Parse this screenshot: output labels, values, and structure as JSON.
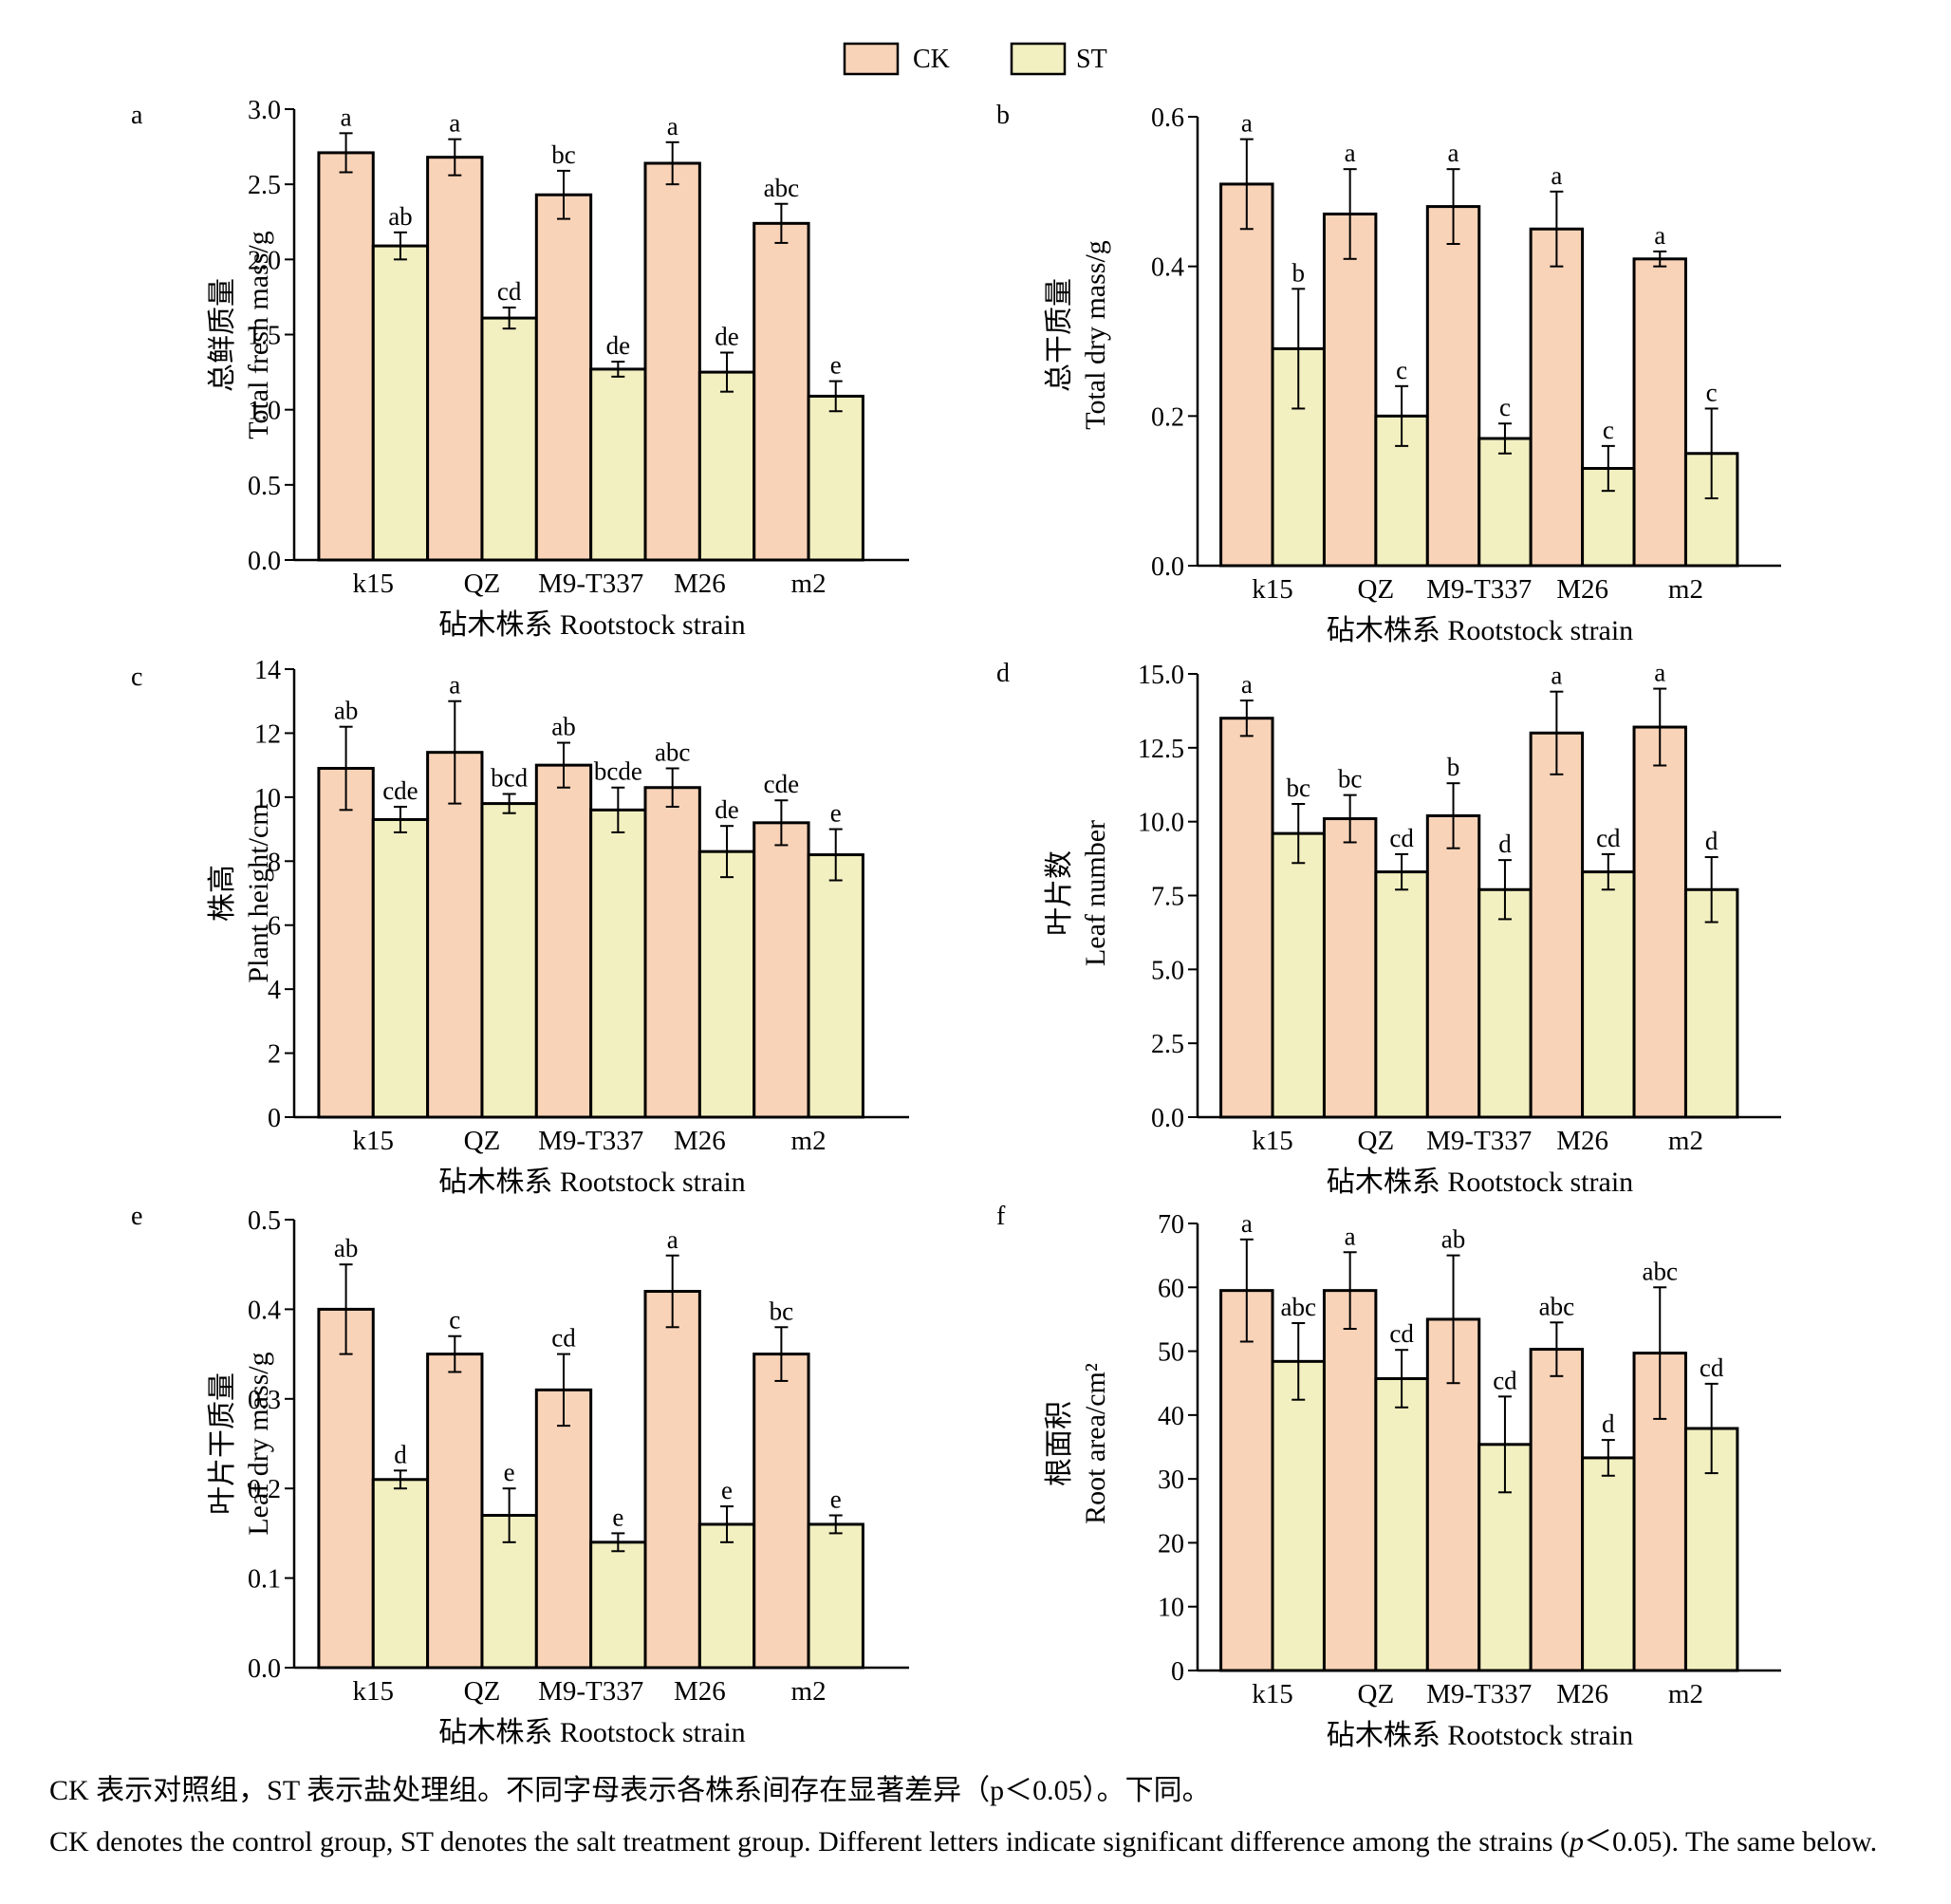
{
  "legend": {
    "items": [
      {
        "label": "CK",
        "color": "#f9d3b8"
      },
      {
        "label": "ST",
        "color": "#f2f0c0"
      }
    ]
  },
  "caption": {
    "zh": "CK 表示对照组，ST 表示盐处理组。不同字母表示各株系间存在显著差异（p＜0.05）。下同。",
    "en_before_p": "CK denotes the control group, ST denotes the salt treatment group. Different letters indicate significant difference among the strains (",
    "en_p": "p",
    "en_after_p": "＜0.05). The same below."
  },
  "chart_data": [
    {
      "panel": "a",
      "type": "bar",
      "categories": [
        "k15",
        "QZ",
        "M9-T337",
        "M26",
        "m2"
      ],
      "xlabel": "砧木株系 Rootstock strain",
      "ylabel_zh": "总鲜质量",
      "ylabel_en": "Total fresh mass/g",
      "ylim": [
        0,
        3.0
      ],
      "yticks": [
        0,
        0.5,
        1.0,
        1.5,
        2.0,
        2.5,
        3.0
      ],
      "ytick_labels": [
        "0.0",
        "0.5",
        "1.0",
        "1.5",
        "2.0",
        "2.5",
        "3.0"
      ],
      "series": [
        {
          "name": "CK",
          "values": [
            2.71,
            2.68,
            2.43,
            2.64,
            2.24
          ],
          "errors": [
            0.13,
            0.12,
            0.16,
            0.14,
            0.13
          ],
          "letters": [
            "a",
            "a",
            "bc",
            "a",
            "abc"
          ]
        },
        {
          "name": "ST",
          "values": [
            2.09,
            1.61,
            1.27,
            1.25,
            1.09
          ],
          "errors": [
            0.09,
            0.07,
            0.05,
            0.13,
            0.1
          ],
          "letters": [
            "ab",
            "cd",
            "de",
            "de",
            "e"
          ]
        }
      ]
    },
    {
      "panel": "b",
      "type": "bar",
      "categories": [
        "k15",
        "QZ",
        "M9-T337",
        "M26",
        "m2"
      ],
      "xlabel": "砧木株系 Rootstock strain",
      "ylabel_zh": "总干质量",
      "ylabel_en": "Total dry mass/g",
      "ylim": [
        0,
        0.6
      ],
      "yticks": [
        0,
        0.2,
        0.4,
        0.6
      ],
      "ytick_labels": [
        "0.0",
        "0.2",
        "0.4",
        "0.6"
      ],
      "series": [
        {
          "name": "CK",
          "values": [
            0.51,
            0.47,
            0.48,
            0.45,
            0.41
          ],
          "errors": [
            0.06,
            0.06,
            0.05,
            0.05,
            0.01
          ],
          "letters": [
            "a",
            "a",
            "a",
            "a",
            "a"
          ]
        },
        {
          "name": "ST",
          "values": [
            0.29,
            0.2,
            0.17,
            0.13,
            0.15
          ],
          "errors": [
            0.08,
            0.04,
            0.02,
            0.03,
            0.06
          ],
          "letters": [
            "b",
            "c",
            "c",
            "c",
            "c"
          ]
        }
      ]
    },
    {
      "panel": "c",
      "type": "bar",
      "categories": [
        "k15",
        "QZ",
        "M9-T337",
        "M26",
        "m2"
      ],
      "xlabel": "砧木株系 Rootstock strain",
      "ylabel_zh": "株高",
      "ylabel_en": "Plant height/cm",
      "ylim": [
        0,
        14
      ],
      "yticks": [
        0,
        2,
        4,
        6,
        8,
        10,
        12,
        14
      ],
      "ytick_labels": [
        "0",
        "2",
        "4",
        "6",
        "8",
        "10",
        "12",
        "14"
      ],
      "series": [
        {
          "name": "CK",
          "values": [
            10.9,
            11.4,
            11.0,
            10.3,
            9.2
          ],
          "errors": [
            1.3,
            1.6,
            0.7,
            0.6,
            0.7
          ],
          "letters": [
            "ab",
            "a",
            "ab",
            "abc",
            "cde"
          ]
        },
        {
          "name": "ST",
          "values": [
            9.3,
            9.8,
            9.6,
            8.3,
            8.2
          ],
          "errors": [
            0.4,
            0.3,
            0.7,
            0.8,
            0.8
          ],
          "letters": [
            "cde",
            "bcd",
            "bcde",
            "de",
            "e"
          ]
        }
      ]
    },
    {
      "panel": "d",
      "type": "bar",
      "categories": [
        "k15",
        "QZ",
        "M9-T337",
        "M26",
        "m2"
      ],
      "xlabel": "砧木株系 Rootstock strain",
      "ylabel_zh": "叶片数",
      "ylabel_en": "Leaf number",
      "ylim": [
        0,
        15.0
      ],
      "yticks": [
        0,
        2.5,
        5.0,
        7.5,
        10.0,
        12.5,
        15.0
      ],
      "ytick_labels": [
        "0.0",
        "2.5",
        "5.0",
        "7.5",
        "10.0",
        "12.5",
        "15.0"
      ],
      "series": [
        {
          "name": "CK",
          "values": [
            13.5,
            10.1,
            10.2,
            13.0,
            13.2
          ],
          "errors": [
            0.6,
            0.8,
            1.1,
            1.4,
            1.3
          ],
          "letters": [
            "a",
            "bc",
            "b",
            "a",
            "a"
          ]
        },
        {
          "name": "ST",
          "values": [
            9.6,
            8.3,
            7.7,
            8.3,
            7.7
          ],
          "errors": [
            1.0,
            0.6,
            1.0,
            0.6,
            1.1
          ],
          "letters": [
            "bc",
            "cd",
            "d",
            "cd",
            "d"
          ]
        }
      ]
    },
    {
      "panel": "e",
      "type": "bar",
      "categories": [
        "k15",
        "QZ",
        "M9-T337",
        "M26",
        "m2"
      ],
      "xlabel": "砧木株系 Rootstock strain",
      "ylabel_zh": "叶片干质量",
      "ylabel_en": "Leaf dry mass/g",
      "ylim": [
        0,
        0.5
      ],
      "yticks": [
        0,
        0.1,
        0.2,
        0.3,
        0.4,
        0.5
      ],
      "ytick_labels": [
        "0.0",
        "0.1",
        "0.2",
        "0.3",
        "0.4",
        "0.5"
      ],
      "series": [
        {
          "name": "CK",
          "values": [
            0.4,
            0.35,
            0.31,
            0.42,
            0.35
          ],
          "errors": [
            0.05,
            0.02,
            0.04,
            0.04,
            0.03
          ],
          "letters": [
            "ab",
            "c",
            "cd",
            "a",
            "bc"
          ]
        },
        {
          "name": "ST",
          "values": [
            0.21,
            0.17,
            0.14,
            0.16,
            0.16
          ],
          "errors": [
            0.01,
            0.03,
            0.01,
            0.02,
            0.01
          ],
          "letters": [
            "d",
            "e",
            "e",
            "e",
            "e"
          ]
        }
      ]
    },
    {
      "panel": "f",
      "type": "bar",
      "categories": [
        "k15",
        "QZ",
        "M9-T337",
        "M26",
        "m2"
      ],
      "xlabel": "砧木株系 Rootstock strain",
      "ylabel_zh": "根面积",
      "ylabel_en": "Root area/cm²",
      "ylim": [
        0,
        70
      ],
      "yticks": [
        0,
        10,
        20,
        30,
        40,
        50,
        60,
        70
      ],
      "ytick_labels": [
        "0",
        "10",
        "20",
        "30",
        "40",
        "50",
        "60",
        "70"
      ],
      "series": [
        {
          "name": "CK",
          "values": [
            59.5,
            59.5,
            55.0,
            50.3,
            49.7
          ],
          "errors": [
            8.0,
            6.0,
            10.0,
            4.2,
            10.3
          ],
          "letters": [
            "a",
            "a",
            "ab",
            "abc",
            "abc"
          ]
        },
        {
          "name": "ST",
          "values": [
            48.4,
            45.7,
            35.4,
            33.3,
            37.9
          ],
          "errors": [
            6.0,
            4.5,
            7.5,
            2.8,
            7.0
          ],
          "letters": [
            "abc",
            "cd",
            "cd",
            "d",
            "cd"
          ]
        }
      ]
    }
  ]
}
